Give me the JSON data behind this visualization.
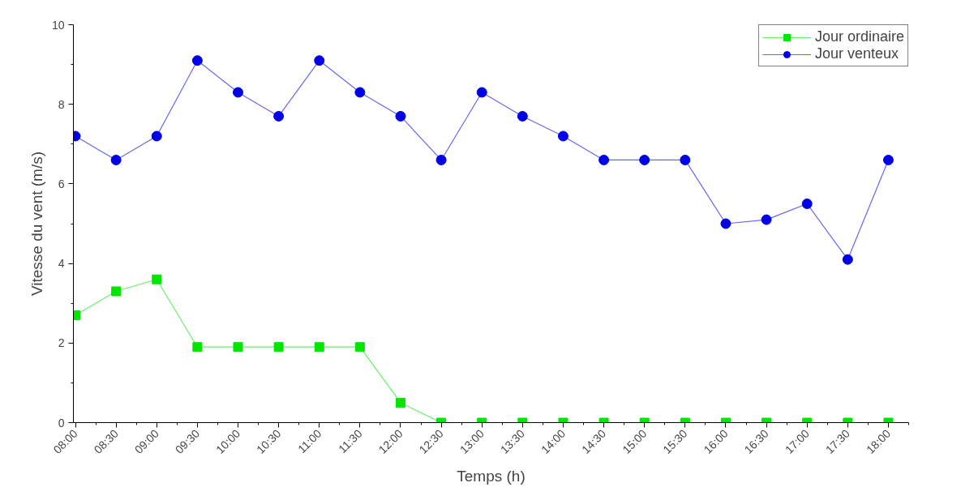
{
  "chart_data": {
    "type": "line",
    "xlabel": "Temps (h)",
    "ylabel": "Vitesse du vent (m/s)",
    "categories": [
      "08:00",
      "08:30",
      "09:00",
      "09:30",
      "10:00",
      "10:30",
      "11:00",
      "11:30",
      "12:00",
      "12:30",
      "13:00",
      "13:30",
      "14:00",
      "14:30",
      "15:00",
      "15:30",
      "16:00",
      "16:30",
      "17:00",
      "17:30",
      "18:00"
    ],
    "series": [
      {
        "name": "Jour ordinaire",
        "color": "#00e600",
        "marker": "square",
        "values": [
          2.7,
          3.3,
          3.6,
          1.9,
          1.9,
          1.9,
          1.9,
          1.9,
          0.5,
          0,
          0,
          0,
          0,
          0,
          0,
          0,
          0,
          0,
          0,
          0,
          0
        ]
      },
      {
        "name": "Jour venteux",
        "color": "#0000e6",
        "marker": "circle",
        "values": [
          7.2,
          6.6,
          7.2,
          9.1,
          8.3,
          7.7,
          9.1,
          8.3,
          7.7,
          6.6,
          8.3,
          7.7,
          7.2,
          6.6,
          6.6,
          6.6,
          5.0,
          5.1,
          5.5,
          4.1,
          6.6
        ]
      }
    ],
    "ylim": [
      0,
      10
    ],
    "yticks": [
      0,
      2,
      4,
      6,
      8,
      10
    ],
    "grid": false,
    "legend": "top right"
  }
}
